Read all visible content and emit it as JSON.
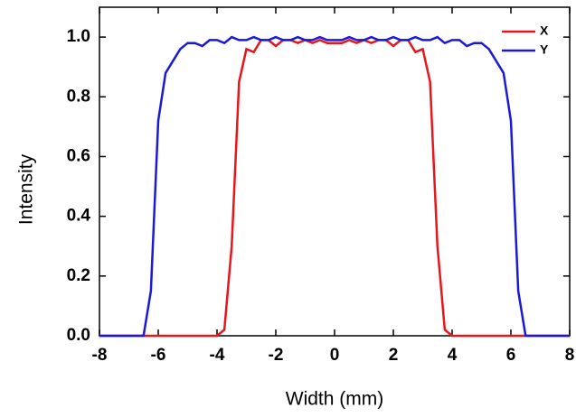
{
  "chart_data": {
    "type": "line",
    "x_label": "Width (mm)",
    "y_label": "Intensity",
    "x": [
      -8,
      -7.75,
      -7.5,
      -7.25,
      -7,
      -6.75,
      -6.5,
      -6.25,
      -6,
      -5.75,
      -5.5,
      -5.25,
      -5,
      -4.75,
      -4.5,
      -4.25,
      -4,
      -3.75,
      -3.5,
      -3.25,
      -3,
      -2.75,
      -2.5,
      -2.25,
      -2,
      -1.75,
      -1.5,
      -1.25,
      -1,
      -0.75,
      -0.5,
      -0.25,
      0,
      0.25,
      0.5,
      0.75,
      1,
      1.25,
      1.5,
      1.75,
      2,
      2.25,
      2.5,
      2.75,
      3,
      3.25,
      3.5,
      3.75,
      4,
      4.25,
      4.5,
      4.75,
      5,
      5.25,
      5.5,
      5.75,
      6,
      6.25,
      6.5,
      6.75,
      7,
      7.25,
      7.5,
      7.75,
      8
    ],
    "series": [
      {
        "name": "X",
        "color": "#e8161b",
        "values": [
          0,
          0,
          0,
          0,
          0,
          0,
          0,
          0,
          0,
          0,
          0,
          0,
          0,
          0,
          0,
          0,
          0,
          0.02,
          0.3,
          0.85,
          0.96,
          0.95,
          0.99,
          0.99,
          0.97,
          0.99,
          0.99,
          0.98,
          0.99,
          0.98,
          0.99,
          0.98,
          0.98,
          0.98,
          0.99,
          0.98,
          0.99,
          0.98,
          0.99,
          0.99,
          0.97,
          0.99,
          0.99,
          0.95,
          0.96,
          0.85,
          0.3,
          0.02,
          0,
          0,
          0,
          0,
          0,
          0,
          0,
          0,
          0,
          0,
          0,
          0,
          0,
          0,
          0,
          0,
          0
        ]
      },
      {
        "name": "Y",
        "color": "#1a1ad6",
        "values": [
          0,
          0,
          0,
          0,
          0,
          0,
          0,
          0.15,
          0.72,
          0.88,
          0.92,
          0.96,
          0.98,
          0.98,
          0.97,
          0.99,
          0.99,
          0.98,
          1.0,
          0.99,
          0.99,
          1.0,
          0.99,
          0.99,
          1.0,
          0.99,
          0.99,
          1.0,
          0.99,
          0.99,
          1.0,
          0.99,
          0.99,
          0.99,
          1.0,
          0.99,
          0.99,
          1.0,
          0.99,
          0.99,
          1.0,
          0.99,
          0.99,
          1.0,
          0.99,
          0.99,
          1.0,
          0.98,
          0.99,
          0.99,
          0.97,
          0.98,
          0.98,
          0.96,
          0.92,
          0.88,
          0.72,
          0.15,
          0,
          0,
          0,
          0,
          0,
          0,
          0
        ]
      }
    ],
    "xlim": [
      -8,
      8
    ],
    "xticks": [
      -8,
      -6,
      -4,
      -2,
      0,
      2,
      4,
      6,
      8
    ],
    "ylim": [
      0,
      1.1
    ],
    "yticks": [
      {
        "value": 0,
        "label": "0.0"
      },
      0.2,
      0.4,
      0.6,
      0.8,
      {
        "value": 1,
        "label": "1.0"
      }
    ],
    "legend": "upper right"
  }
}
